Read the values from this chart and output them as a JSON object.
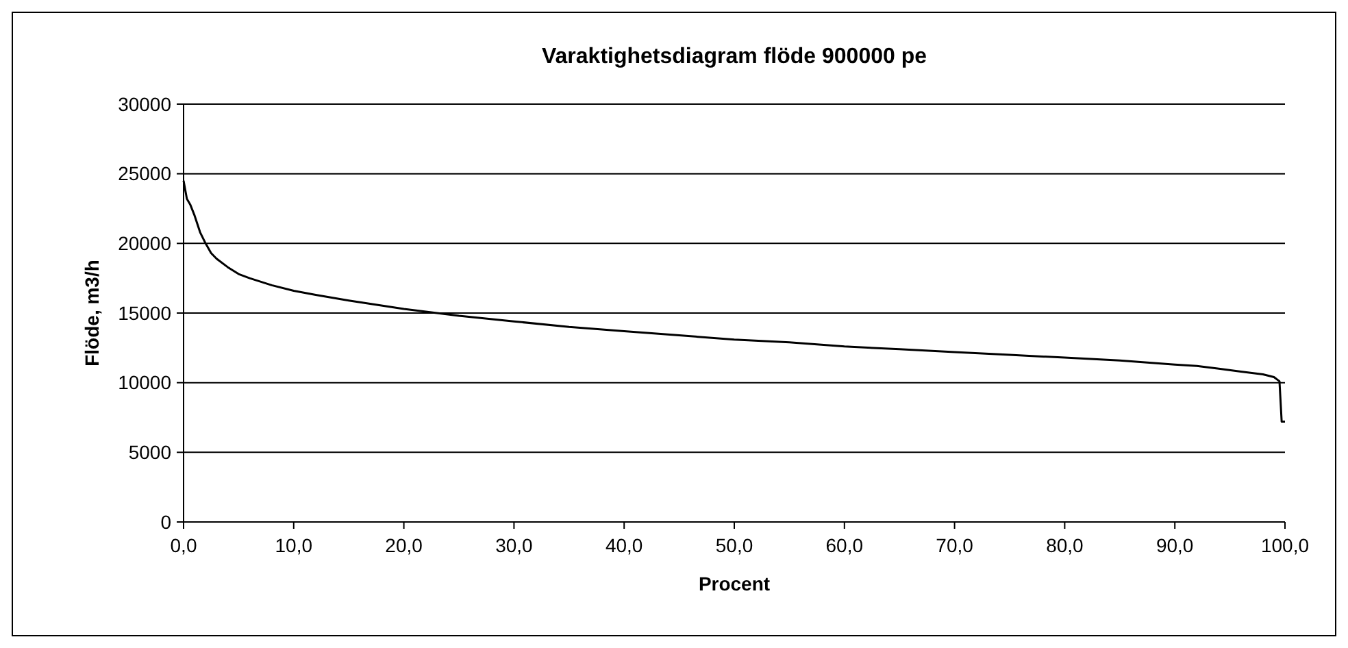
{
  "chart_data": {
    "type": "line",
    "title": "Varaktighetsdiagram flöde 900000 pe",
    "xlabel": "Procent",
    "ylabel": "Flöde, m3/h",
    "x": [
      0,
      0.3,
      0.6,
      1,
      1.5,
      2,
      2.5,
      3,
      4,
      5,
      6,
      8,
      10,
      12,
      15,
      20,
      25,
      30,
      35,
      40,
      45,
      50,
      55,
      60,
      65,
      70,
      75,
      80,
      85,
      90,
      92,
      94,
      96,
      97,
      98,
      99,
      99.5,
      99.7,
      100
    ],
    "series": [
      {
        "color": "#000000",
        "values": [
          24500,
          23200,
          22800,
          22000,
          20800,
          20000,
          19300,
          18900,
          18300,
          17800,
          17500,
          17000,
          16600,
          16300,
          15900,
          15300,
          14800,
          14400,
          14000,
          13700,
          13400,
          13100,
          12900,
          12600,
          12400,
          12200,
          12000,
          11800,
          11600,
          11300,
          11200,
          11000,
          10800,
          10700,
          10600,
          10400,
          10100,
          7200,
          7200
        ]
      }
    ],
    "xlim": [
      0,
      100
    ],
    "xticks": [
      {
        "value": 0,
        "label": "0,0"
      },
      {
        "value": 10,
        "label": "10,0"
      },
      {
        "value": 20,
        "label": "20,0"
      },
      {
        "value": 30,
        "label": "30,0"
      },
      {
        "value": 40,
        "label": "40,0"
      },
      {
        "value": 50,
        "label": "50,0"
      },
      {
        "value": 60,
        "label": "60,0"
      },
      {
        "value": 70,
        "label": "70,0"
      },
      {
        "value": 80,
        "label": "80,0"
      },
      {
        "value": 90,
        "label": "90,0"
      },
      {
        "value": 100,
        "label": "100,0"
      }
    ],
    "ylim": [
      0,
      30000
    ],
    "yticks": [
      0,
      5000,
      10000,
      15000,
      20000,
      25000,
      30000
    ],
    "grid": "y",
    "marker": "none",
    "line_style": "solid"
  }
}
